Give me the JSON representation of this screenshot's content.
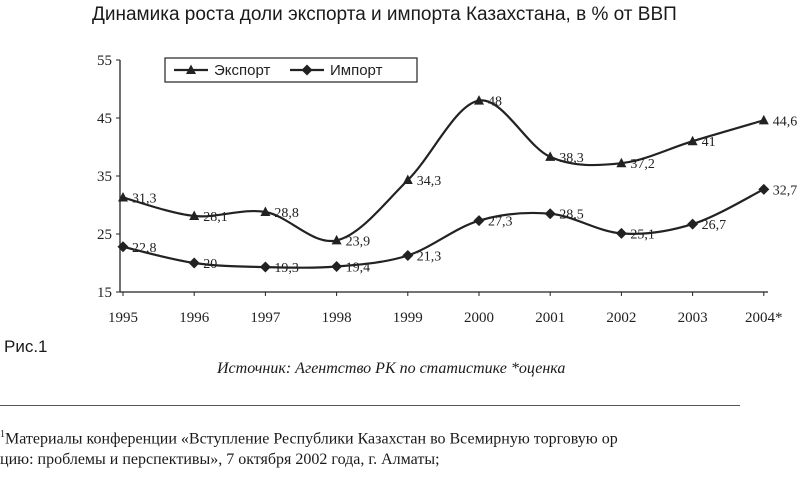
{
  "chart_data": {
    "type": "line",
    "title": "Динамика роста доли экспорта и импорта Казахстана, в % от ВВП",
    "categories": [
      "1995",
      "1996",
      "1997",
      "1998",
      "1999",
      "2000",
      "2001",
      "2002",
      "2003",
      "2004*"
    ],
    "ylim": [
      15,
      55
    ],
    "yticks": [
      15,
      25,
      35,
      45,
      55
    ],
    "grid": false,
    "legend": "top-left",
    "series": [
      {
        "name": "Экспорт",
        "marker": "triangle",
        "values": [
          31.3,
          28.1,
          28.8,
          23.9,
          34.3,
          48,
          38.3,
          37.2,
          41,
          44.6
        ],
        "labels": [
          "31,3",
          "28,1",
          "28,8",
          "23,9",
          "34,3",
          "48",
          "38,3",
          "37,2",
          "41",
          "44,6"
        ]
      },
      {
        "name": "Импорт",
        "marker": "diamond",
        "values": [
          22.8,
          20,
          19.3,
          19.4,
          21.3,
          27.3,
          28.5,
          25.1,
          26.7,
          32.7
        ],
        "labels": [
          "22,8",
          "20",
          "19,3",
          "19,4",
          "21,3",
          "27,3",
          "28,5",
          "25,1",
          "26,7",
          "32,7"
        ]
      }
    ]
  },
  "figure_label": "Рис.1",
  "source": "Источник: Агентство РК по статистике *оценка",
  "footnote": {
    "mark": "1",
    "line1": "Материалы конференции «Вступление Республики Казахстан во Всемирную торговую ор",
    "line2": "цию: проблемы и перспективы», 7 октября 2002 года, г. Алматы;"
  },
  "style": {
    "line_color": "#222222"
  }
}
